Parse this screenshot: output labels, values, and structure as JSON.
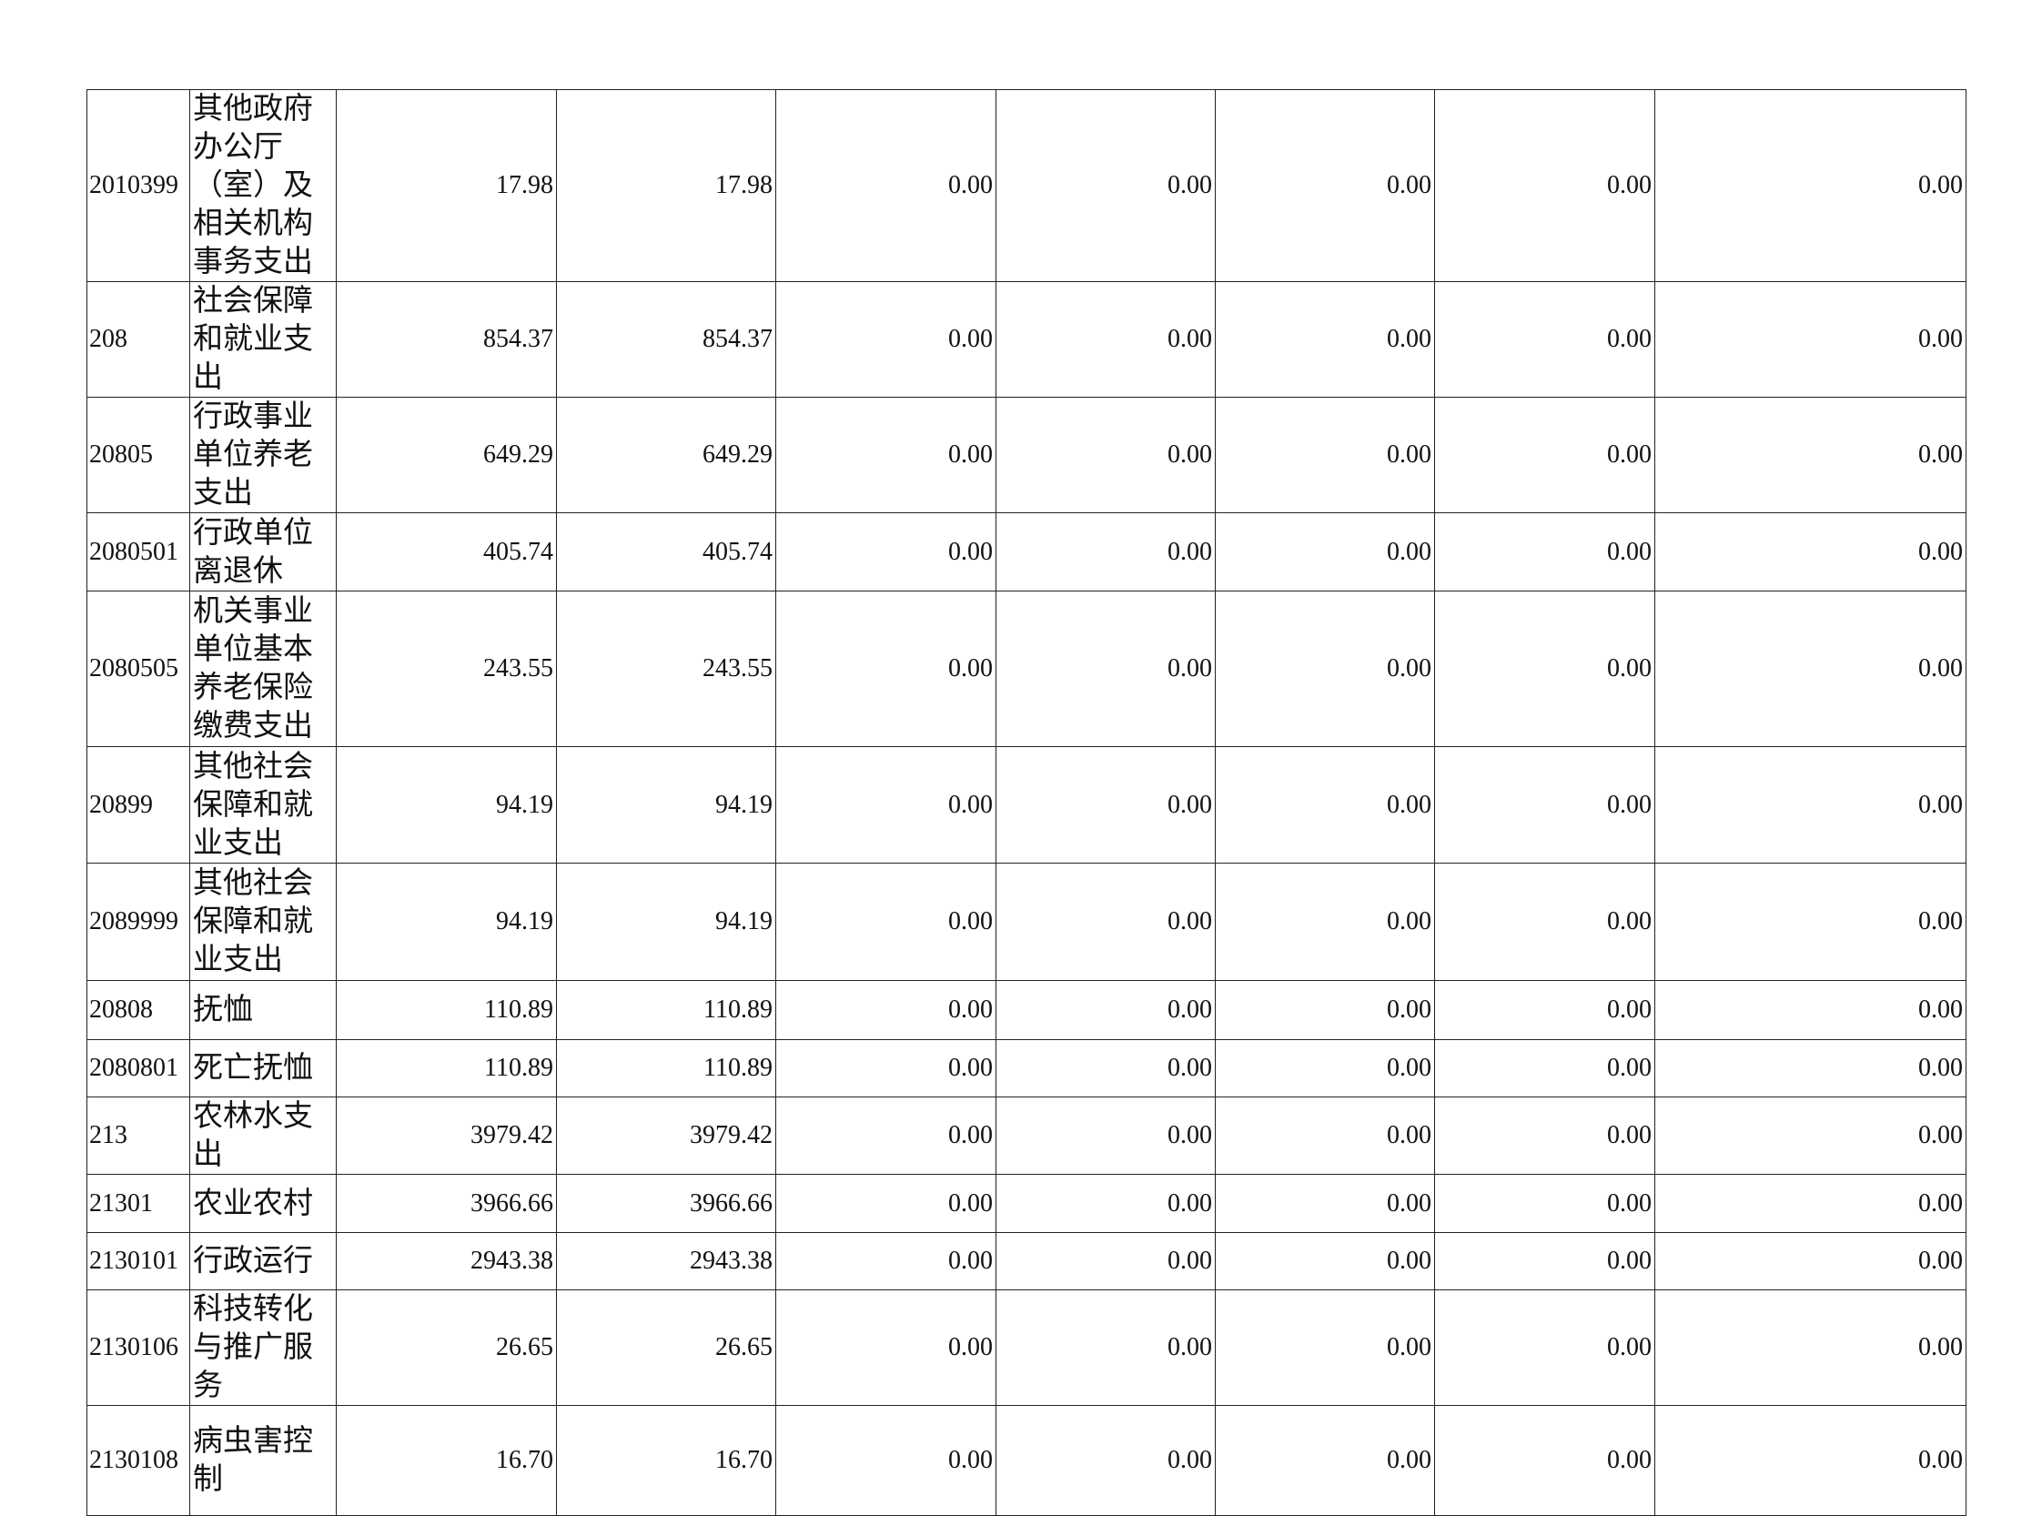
{
  "table": {
    "rows": [
      {
        "code": "2010399",
        "name": "其他政府办公厅（室）及相关机构事务支出",
        "values": [
          "17.98",
          "17.98",
          "0.00",
          "0.00",
          "0.00",
          "0.00",
          "0.00"
        ]
      },
      {
        "code": "208",
        "name": "社会保障和就业支出",
        "values": [
          "854.37",
          "854.37",
          "0.00",
          "0.00",
          "0.00",
          "0.00",
          "0.00"
        ]
      },
      {
        "code": "20805",
        "name": "行政事业单位养老支出",
        "values": [
          "649.29",
          "649.29",
          "0.00",
          "0.00",
          "0.00",
          "0.00",
          "0.00"
        ]
      },
      {
        "code": "2080501",
        "name": "行政单位离退休",
        "values": [
          "405.74",
          "405.74",
          "0.00",
          "0.00",
          "0.00",
          "0.00",
          "0.00"
        ]
      },
      {
        "code": "2080505",
        "name": "机关事业单位基本养老保险缴费支出",
        "values": [
          "243.55",
          "243.55",
          "0.00",
          "0.00",
          "0.00",
          "0.00",
          "0.00"
        ]
      },
      {
        "code": "20899",
        "name": "其他社会保障和就业支出",
        "values": [
          "94.19",
          "94.19",
          "0.00",
          "0.00",
          "0.00",
          "0.00",
          "0.00"
        ]
      },
      {
        "code": "2089999",
        "name": "其他社会保障和就业支出",
        "values": [
          "94.19",
          "94.19",
          "0.00",
          "0.00",
          "0.00",
          "0.00",
          "0.00"
        ]
      },
      {
        "code": "20808",
        "name": "抚恤",
        "values": [
          "110.89",
          "110.89",
          "0.00",
          "0.00",
          "0.00",
          "0.00",
          "0.00"
        ]
      },
      {
        "code": "2080801",
        "name": "死亡抚恤",
        "values": [
          "110.89",
          "110.89",
          "0.00",
          "0.00",
          "0.00",
          "0.00",
          "0.00"
        ]
      },
      {
        "code": "213",
        "name": "农林水支出",
        "values": [
          "3979.42",
          "3979.42",
          "0.00",
          "0.00",
          "0.00",
          "0.00",
          "0.00"
        ]
      },
      {
        "code": "21301",
        "name": "农业农村",
        "values": [
          "3966.66",
          "3966.66",
          "0.00",
          "0.00",
          "0.00",
          "0.00",
          "0.00"
        ]
      },
      {
        "code": "2130101",
        "name": "行政运行",
        "values": [
          "2943.38",
          "2943.38",
          "0.00",
          "0.00",
          "0.00",
          "0.00",
          "0.00"
        ]
      },
      {
        "code": "2130106",
        "name": "科技转化与推广服务",
        "values": [
          "26.65",
          "26.65",
          "0.00",
          "0.00",
          "0.00",
          "0.00",
          "0.00"
        ]
      },
      {
        "code": "2130108",
        "name": "病虫害控制",
        "values": [
          "16.70",
          "16.70",
          "0.00",
          "0.00",
          "0.00",
          "0.00",
          "0.00"
        ]
      }
    ]
  }
}
